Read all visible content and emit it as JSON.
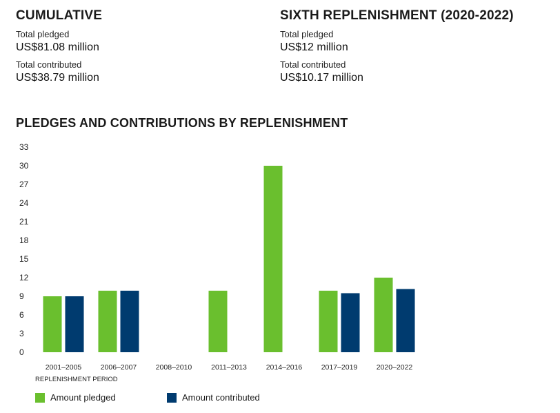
{
  "cumulative": {
    "heading": "CUMULATIVE",
    "pledged_label": "Total pledged",
    "pledged_value": "US$81.08 million",
    "contributed_label": "Total contributed",
    "contributed_value": "US$38.79 million"
  },
  "sixth": {
    "heading": "SIXTH REPLENISHMENT (2020-2022)",
    "pledged_label": "Total pledged",
    "pledged_value": "US$12 million",
    "contributed_label": "Total contributed",
    "contributed_value": "US$10.17 million"
  },
  "chart_data": {
    "type": "bar",
    "title": "PLEDGES AND CONTRIBUTIONS BY REPLENISHMENT",
    "xlabel": "REPLENISHMENT PERIOD",
    "ylabel": "",
    "ylim": [
      0,
      33
    ],
    "yticks": [
      "0",
      "3",
      "6",
      "9",
      "12",
      "15",
      "18",
      "21",
      "24",
      "27",
      "30",
      "33"
    ],
    "categories": [
      "2001–2005",
      "2006–2007",
      "2008–2010",
      "2011–2013",
      "2014–2016",
      "2017–2019",
      "2020–2022"
    ],
    "series": [
      {
        "name": "Amount pledged",
        "color": "#6abf2e",
        "values": [
          9,
          9.9,
          0,
          9.9,
          30,
          9.9,
          12
        ]
      },
      {
        "name": "Amount contributed",
        "color": "#003b6f",
        "values": [
          9,
          9.9,
          0,
          0,
          0,
          9.5,
          10.17
        ]
      }
    ],
    "grid": false,
    "legend": "bottom-left"
  }
}
